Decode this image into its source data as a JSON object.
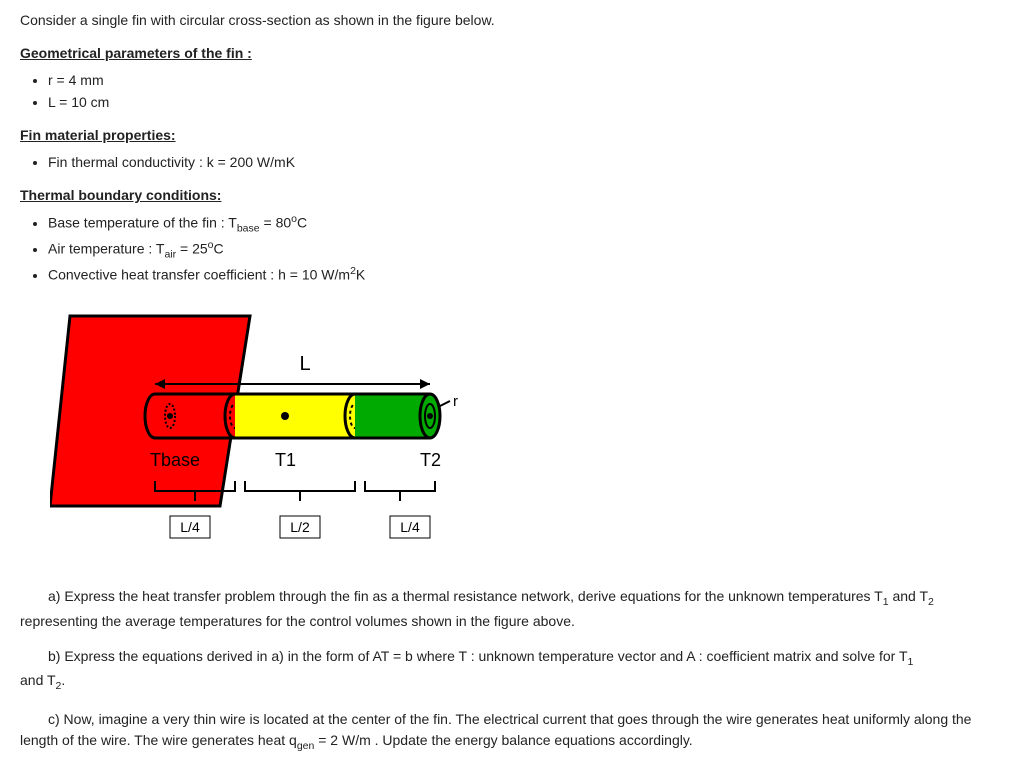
{
  "intro": "Consider a single fin with circular cross-section as shown in the figure below.",
  "sections": {
    "geom": {
      "heading": "Geometrical parameters of the fin :",
      "items": [
        "r = 4 mm",
        "L = 10 cm"
      ]
    },
    "material": {
      "heading": "Fin material properties:",
      "items": [
        "Fin thermal conductivity : k = 200 W/mK"
      ]
    },
    "boundary": {
      "heading": "Thermal boundary conditions:",
      "items_html": [
        "Base temperature of the fin : T<sub>base</sub> = 80<sup>o</sup>C",
        "Air temperature : T<sub>air</sub> = 25<sup>o</sup>C",
        "Convective heat transfer coefficient : h = 10 W/m<sup>2</sup>K"
      ]
    }
  },
  "figure": {
    "L": "L",
    "r": "r",
    "Tbase": "Tbase",
    "T1": "T1",
    "T2": "T2",
    "seg1": "L/4",
    "seg2": "L/2",
    "seg3": "L/4",
    "colors": {
      "wall": "#ff0000",
      "seg1": "#ff0000",
      "seg2": "#ffff00",
      "seg3": "#00aa00",
      "stroke": "#000000"
    }
  },
  "questions": {
    "a_lead": "a) Express the heat transfer problem through the fin as a thermal resistance network, derive equations for the unknown temperatures T",
    "a_mid": " and T",
    "a_tail": " representing the average temperatures for the control volumes shown in the figure above.",
    "b_lead": "b) Express the equations derived in a) in the form of AT = b where T : unknown temperature vector and A : coefficient matrix and solve for T",
    "b_tail": ".",
    "c_lead": "c) Now, imagine a very thin wire is located at the center of the fin. The electrical current that goes through the wire generates heat uniformly along the length of the wire. The wire generates heat q",
    "c_tail": " = 2 W/m . Update the energy balance equations accordingly.",
    "sub_gen": "gen",
    "sub1": "1",
    "sub2": "2",
    "and": "and T"
  }
}
